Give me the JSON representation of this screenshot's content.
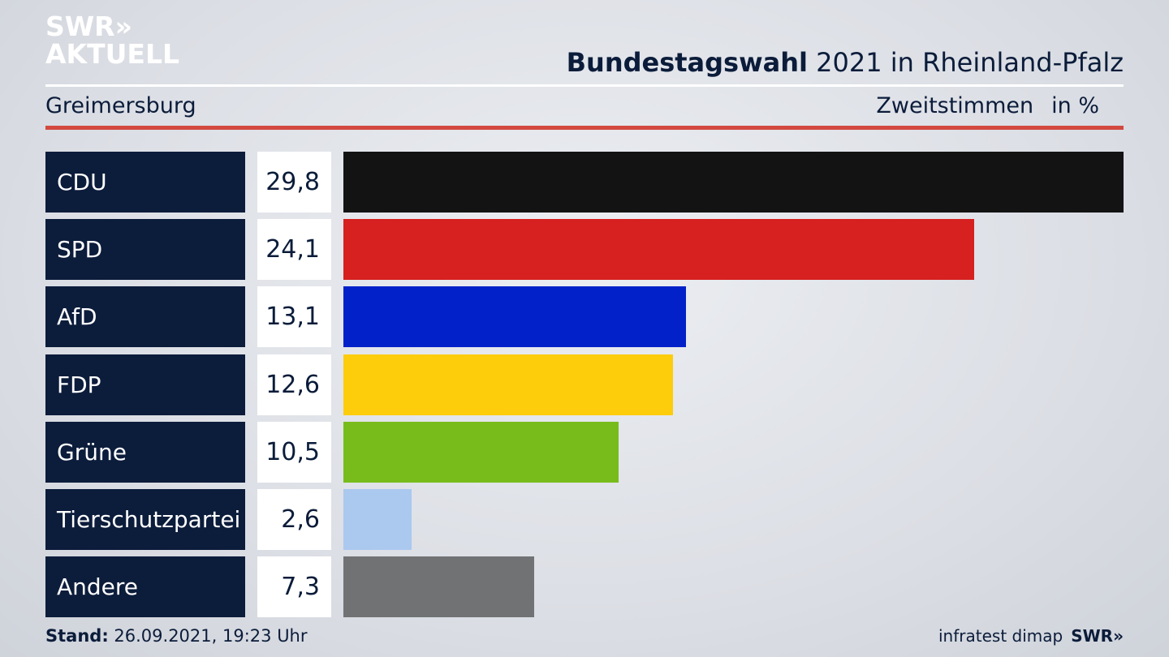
{
  "brand": {
    "line1": "SWR»",
    "line2": "AKTUELL"
  },
  "header": {
    "title_bold": "Bundestagswahl",
    "title_rest": "2021 in Rheinland-Pfalz",
    "place": "Greimersburg",
    "measure": "Zweitstimmen",
    "unit": "in %"
  },
  "chart_data": {
    "type": "bar",
    "orientation": "horizontal",
    "categories": [
      "CDU",
      "SPD",
      "AfD",
      "FDP",
      "Grüne",
      "Tierschutzpartei",
      "Andere"
    ],
    "values": [
      29.8,
      24.1,
      13.1,
      12.6,
      10.5,
      2.6,
      7.3
    ],
    "value_labels": [
      "29,8",
      "24,1",
      "13,1",
      "12,6",
      "10,5",
      "2,6",
      "7,3"
    ],
    "colors": [
      "#131313",
      "#d72020",
      "#0321c9",
      "#fdcc0a",
      "#78bc1b",
      "#abc8ef",
      "#717274"
    ],
    "xlim": [
      0,
      29.8
    ],
    "grid": false
  },
  "footer": {
    "stand_label": "Stand:",
    "stand_value": "26.09.2021, 19:23 Uhr",
    "source": "infratest dimap",
    "source_brand": "SWR»"
  }
}
